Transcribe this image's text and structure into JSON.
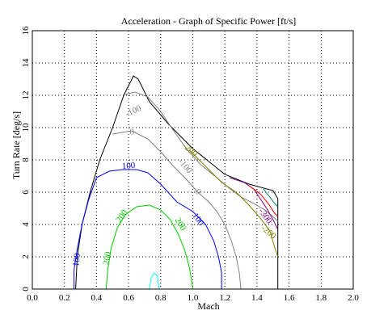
{
  "chart_data": {
    "type": "line",
    "title": "Acceleration - Graph of Specific Power [ft/s]",
    "xlabel": "Mach",
    "ylabel": "Turn Rate [deg/s]",
    "xlim": [
      0,
      2
    ],
    "ylim": [
      0,
      16
    ],
    "xticks": [
      "0.0",
      "0.2",
      "0.4",
      "0.6",
      "0.8",
      "1.0",
      "1.2",
      "1.4",
      "1.6",
      "1.8",
      "2.0"
    ],
    "yticks": [
      "0",
      "2",
      "4",
      "6",
      "8",
      "10",
      "12",
      "14",
      "16"
    ],
    "grid": true,
    "series": [
      {
        "color": "#000000",
        "points": [
          [
            0.27,
            0
          ],
          [
            0.28,
            2
          ],
          [
            0.31,
            4
          ],
          [
            0.36,
            6
          ],
          [
            0.42,
            8
          ],
          [
            0.5,
            10
          ],
          [
            0.57,
            12
          ],
          [
            0.63,
            13.2
          ],
          [
            0.66,
            13.0
          ],
          [
            0.73,
            11.6
          ],
          [
            0.85,
            10.2
          ],
          [
            1.0,
            8.7
          ],
          [
            1.2,
            7.1
          ],
          [
            1.35,
            6.5
          ],
          [
            1.5,
            6.1
          ],
          [
            1.53,
            5.6
          ],
          [
            1.53,
            0
          ]
        ]
      },
      {
        "color": "#808080",
        "points": [
          [
            0.58,
            12.05
          ],
          [
            0.64,
            12.2
          ],
          [
            0.72,
            11.9
          ],
          [
            0.8,
            11.0
          ],
          [
            0.88,
            9.8
          ],
          [
            0.96,
            8.7
          ],
          [
            1.05,
            7.7
          ],
          [
            1.15,
            6.9
          ],
          [
            1.22,
            6.3
          ],
          [
            1.3,
            5.7
          ],
          [
            1.38,
            5.3
          ],
          [
            1.45,
            4.9
          ],
          [
            1.51,
            4.4
          ],
          [
            1.53,
            4.2
          ]
        ]
      },
      {
        "color": "#808080",
        "points": [
          [
            0.5,
            9.6
          ],
          [
            0.62,
            9.8
          ],
          [
            0.72,
            9.3
          ],
          [
            0.8,
            8.5
          ],
          [
            0.88,
            7.6
          ],
          [
            0.96,
            6.8
          ],
          [
            1.03,
            6.0
          ],
          [
            1.1,
            5.4
          ],
          [
            1.15,
            4.8
          ],
          [
            1.2,
            4.0
          ],
          [
            1.24,
            3.0
          ],
          [
            1.27,
            2.0
          ],
          [
            1.29,
            1.0
          ],
          [
            1.3,
            0
          ]
        ]
      },
      {
        "color": "#0000ff",
        "points": [
          [
            0.26,
            0
          ],
          [
            0.26,
            1.2
          ],
          [
            0.28,
            2.5
          ],
          [
            0.31,
            4.0
          ],
          [
            0.35,
            5.5
          ],
          [
            0.4,
            6.9
          ],
          [
            0.48,
            7.3
          ],
          [
            0.56,
            7.4
          ],
          [
            0.65,
            7.4
          ],
          [
            0.72,
            7.2
          ],
          [
            0.8,
            6.5
          ],
          [
            0.9,
            5.4
          ],
          [
            1.0,
            4.8
          ],
          [
            1.08,
            4.0
          ],
          [
            1.13,
            3.0
          ],
          [
            1.16,
            2.0
          ],
          [
            1.18,
            1.0
          ],
          [
            1.18,
            0
          ]
        ]
      },
      {
        "color": "#00cc00",
        "points": [
          [
            0.46,
            0
          ],
          [
            0.47,
            1.2
          ],
          [
            0.49,
            2.5
          ],
          [
            0.53,
            3.8
          ],
          [
            0.58,
            4.6
          ],
          [
            0.65,
            5.1
          ],
          [
            0.73,
            5.2
          ],
          [
            0.8,
            4.9
          ],
          [
            0.86,
            4.3
          ],
          [
            0.91,
            3.4
          ],
          [
            0.95,
            2.4
          ],
          [
            0.98,
            1.3
          ],
          [
            1.0,
            0
          ]
        ]
      },
      {
        "color": "#00ffff",
        "points": [
          [
            0.73,
            0
          ],
          [
            0.74,
            0.7
          ],
          [
            0.76,
            1.0
          ],
          [
            0.78,
            0.8
          ],
          [
            0.79,
            0
          ]
        ]
      },
      {
        "color": "#808000",
        "points": [
          [
            0.98,
            8.6
          ],
          [
            1.08,
            7.6
          ],
          [
            1.18,
            6.6
          ],
          [
            1.27,
            6.0
          ],
          [
            1.35,
            5.2
          ],
          [
            1.42,
            4.4
          ],
          [
            1.48,
            3.6
          ],
          [
            1.51,
            2.6
          ],
          [
            1.53,
            2.0
          ]
        ]
      },
      {
        "color": "#800080",
        "points": [
          [
            1.23,
            6.9
          ],
          [
            1.32,
            6.6
          ],
          [
            1.38,
            6.2
          ],
          [
            1.42,
            5.6
          ],
          [
            1.46,
            5.0
          ],
          [
            1.5,
            4.3
          ],
          [
            1.53,
            3.7
          ]
        ]
      },
      {
        "color": "#ff0000",
        "points": [
          [
            1.35,
            6.4
          ],
          [
            1.42,
            5.9
          ],
          [
            1.47,
            5.3
          ],
          [
            1.51,
            4.7
          ],
          [
            1.53,
            4.5
          ]
        ]
      },
      {
        "color": "#008080",
        "points": [
          [
            1.44,
            6.2
          ],
          [
            1.48,
            5.7
          ],
          [
            1.51,
            5.3
          ],
          [
            1.53,
            5.1
          ]
        ]
      }
    ],
    "contour_labels": [
      {
        "text": "100",
        "x": 0.28,
        "y": 1.8,
        "angle": -82,
        "color": "#0000ff"
      },
      {
        "text": "100",
        "x": 0.6,
        "y": 7.6,
        "angle": -5,
        "color": "#0000ff"
      },
      {
        "text": "100",
        "x": 1.03,
        "y": 4.3,
        "angle": 55,
        "color": "#0000ff"
      },
      {
        "text": "200",
        "x": 0.47,
        "y": 1.9,
        "angle": -80,
        "color": "#00cc00"
      },
      {
        "text": "200",
        "x": 0.56,
        "y": 4.5,
        "angle": -55,
        "color": "#00cc00"
      },
      {
        "text": "200",
        "x": 0.92,
        "y": 4.0,
        "angle": 60,
        "color": "#00cc00"
      },
      {
        "text": "0",
        "x": 0.62,
        "y": 9.7,
        "angle": 0,
        "color": "#808080"
      },
      {
        "text": "-100",
        "x": 0.95,
        "y": 7.6,
        "angle": 50,
        "color": "#808080"
      },
      {
        "text": "0",
        "x": 1.03,
        "y": 6.0,
        "angle": 45,
        "color": "#808080"
      },
      {
        "text": "-100",
        "x": 0.63,
        "y": 11.0,
        "angle": -25,
        "color": "#808080"
      },
      {
        "text": "-200",
        "x": 0.98,
        "y": 8.6,
        "angle": 40,
        "color": "#808000"
      },
      {
        "text": "-200",
        "x": 1.47,
        "y": 3.5,
        "angle": 40,
        "color": "#808000"
      },
      {
        "text": "-300",
        "x": 1.45,
        "y": 4.5,
        "angle": 55,
        "color": "#800080"
      }
    ]
  }
}
